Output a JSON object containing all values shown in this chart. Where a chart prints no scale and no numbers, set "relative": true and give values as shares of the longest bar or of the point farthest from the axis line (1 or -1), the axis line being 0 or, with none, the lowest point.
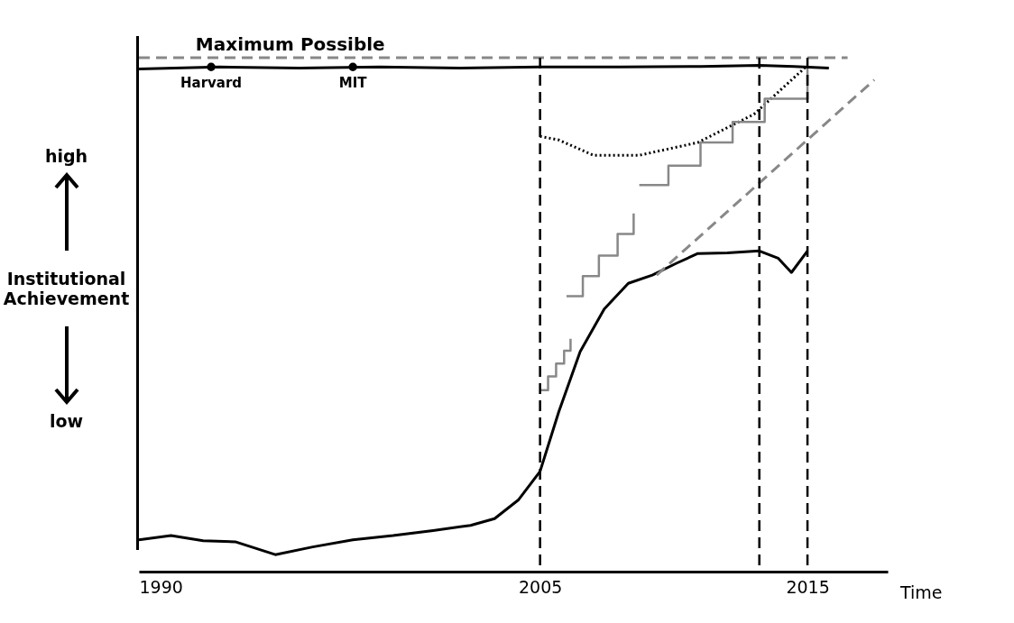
{
  "chart_data": {
    "type": "line",
    "relative": true,
    "xlabel": "Time",
    "ylabel": "Institutional Achievement",
    "xlim": [
      1990,
      2018
    ],
    "xticks": [
      1990,
      2005,
      2015
    ],
    "grid": false,
    "x": [
      1990,
      1991.2,
      1992.4,
      1993.6,
      1995.1,
      1996.5,
      1998,
      1999.5,
      2001,
      2002.4,
      2003.3,
      2004.2,
      2005,
      2005.7,
      2006.5,
      2007.4,
      2008.3,
      2009.2,
      2010.1,
      2010.9,
      2012,
      2013.2,
      2013.9,
      2014.4,
      2015
    ],
    "series": [
      {
        "name": "Maximum Possible",
        "color": "#888888",
        "line_style": "dashed",
        "x": [
          1990,
          2016.5
        ],
        "values": [
          1,
          1
        ]
      },
      {
        "color": "#000000",
        "values": [
          0.062,
          0.07,
          0.06,
          0.058,
          0.033,
          0.048,
          0.062,
          0.07,
          0.08,
          0.09,
          0.103,
          0.14,
          0.195,
          0.311,
          0.428,
          0.511,
          0.561,
          0.577,
          0.6,
          0.619,
          0.62,
          0.624,
          0.61,
          0.582,
          0.624
        ]
      },
      {
        "color": "#000000",
        "x": [
          1990,
          1993,
          1996,
          1999,
          2002,
          2005,
          2008,
          2011,
          2013.2,
          2014.5,
          2015.8
        ],
        "values": [
          0.978,
          0.982,
          0.98,
          0.982,
          0.98,
          0.982,
          0.982,
          0.983,
          0.985,
          0.983,
          0.98
        ]
      },
      {
        "type": "scatter",
        "marker": "circle",
        "color": "#000000",
        "x": [
          1992.7,
          1998
        ],
        "values": [
          0.982,
          0.982
        ]
      },
      {
        "color": "#000000",
        "line_style": "dotted",
        "x": [
          2005,
          2005.7,
          2007,
          2008.7,
          2010.9,
          2013,
          2015
        ],
        "values": [
          0.847,
          0.84,
          0.81,
          0.81,
          0.835,
          0.89,
          0.985
        ]
      },
      {
        "type": "step",
        "color": "#888888",
        "x": [
          2005,
          2005.3,
          2005.6,
          2005.9,
          2006.14
        ],
        "values": [
          0.353,
          0.38,
          0.405,
          0.43,
          0.453
        ]
      },
      {
        "type": "step",
        "color": "#888888",
        "x": [
          2005.99,
          2006.6,
          2007.2,
          2007.9,
          2008.5
        ],
        "values": [
          0.536,
          0.575,
          0.615,
          0.657,
          0.697
        ]
      },
      {
        "type": "step",
        "color": "#888888",
        "x": [
          2008.71,
          2009.8,
          2011,
          2012.2,
          2013.4,
          2015
        ],
        "values": [
          0.752,
          0.79,
          0.835,
          0.875,
          0.92,
          0.98
        ]
      },
      {
        "color": "#888888",
        "line_style": "dashed",
        "x": [
          2009.36,
          2017.5
        ],
        "values": [
          0.577,
          0.957
        ]
      }
    ],
    "ref_lines": [
      {
        "axis": "x",
        "value": 2005,
        "line_style": "dashed",
        "color": "#000000"
      },
      {
        "axis": "x",
        "value": 2013.2,
        "line_style": "dashed",
        "color": "#000000"
      },
      {
        "axis": "x",
        "value": 2015,
        "line_style": "dashed",
        "color": "#000000"
      }
    ],
    "annotations": [
      {
        "text": "Harvard",
        "x": 1992.7,
        "y": 0.982
      },
      {
        "text": "MIT",
        "x": 1998,
        "y": 0.982
      },
      "high",
      "low"
    ]
  }
}
